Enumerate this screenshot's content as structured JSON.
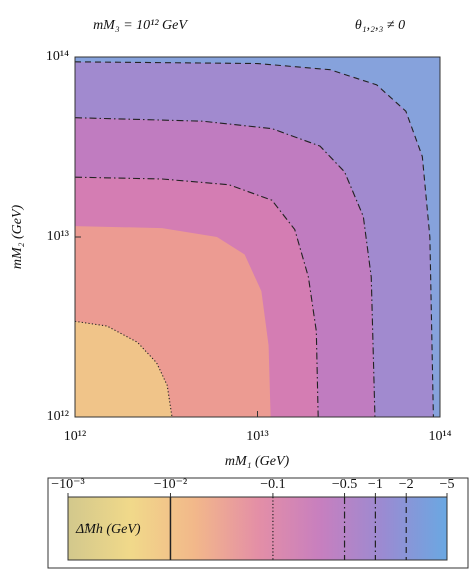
{
  "chart_data": {
    "type": "contour",
    "title": "mM₃ = 10¹² GeV",
    "annotation": "θ₁,₂,₃ ≠ 0",
    "x_label": "mM₁ (GeV)",
    "y_label": "mM₂ (GeV)",
    "log_x": true,
    "log_y": true,
    "xlim": [
      1000000000000.0,
      100000000000000.0
    ],
    "ylim": [
      1000000000000.0,
      100000000000000.0
    ],
    "xticks": [
      {
        "value": 1000000000000.0,
        "label": "10¹²"
      },
      {
        "value": 10000000000000.0,
        "label": "10¹³"
      },
      {
        "value": 100000000000000.0,
        "label": "10¹⁴"
      }
    ],
    "yticks": [
      {
        "value": 1000000000000.0,
        "label": "10¹²"
      },
      {
        "value": 10000000000000.0,
        "label": "10¹³"
      },
      {
        "value": 100000000000000.0,
        "label": "10¹⁴"
      }
    ],
    "background_color": "#86a2dc",
    "contours": [
      {
        "style": "dotted",
        "fill": "#f0c489",
        "x": [
          1000000000000.0,
          1500000000000.0,
          2200000000000.0,
          2800000000000.0,
          3200000000000.0,
          3400000000000.0
        ],
        "y": [
          3400000000000.0,
          3200000000000.0,
          2600000000000.0,
          2000000000000.0,
          1500000000000.0,
          1000000000000.0
        ]
      },
      {
        "style": "none",
        "fill": "#ec9b92",
        "x": [
          1000000000000.0,
          3000000000000.0,
          6000000000000.0,
          8500000000000.0,
          10500000000000.0,
          11500000000000.0,
          11800000000000.0
        ],
        "y": [
          11500000000000.0,
          11200000000000.0,
          10000000000000.0,
          8000000000000.0,
          5000000000000.0,
          2500000000000.0,
          1000000000000.0
        ]
      },
      {
        "style": "dashdot",
        "fill": "#d47db3",
        "x": [
          1000000000000.0,
          3000000000000.0,
          7000000000000.0,
          12000000000000.0,
          16000000000000.0,
          19000000000000.0,
          21000000000000.0,
          21500000000000.0
        ],
        "y": [
          21500000000000.0,
          21000000000000.0,
          19500000000000.0,
          16000000000000.0,
          11000000000000.0,
          6000000000000.0,
          3000000000000.0,
          1000000000000.0
        ]
      },
      {
        "style": "dashdot",
        "fill": "#c07cc0",
        "x": [
          1000000000000.0,
          5000000000000.0,
          12000000000000.0,
          22000000000000.0,
          30000000000000.0,
          38000000000000.0,
          42000000000000.0,
          44000000000000.0
        ],
        "y": [
          46000000000000.0,
          44000000000000.0,
          40000000000000.0,
          32000000000000.0,
          23000000000000.0,
          13000000000000.0,
          6000000000000.0,
          1000000000000.0
        ]
      },
      {
        "style": "dashed",
        "fill": "#a18acf",
        "x": [
          1000000000000.0,
          10000000000000.0,
          25000000000000.0,
          45000000000000.0,
          65000000000000.0,
          80000000000000.0,
          88000000000000.0,
          92000000000000.0
        ],
        "y": [
          94000000000000.0,
          92000000000000.0,
          85000000000000.0,
          70000000000000.0,
          50000000000000.0,
          28000000000000.0,
          10000000000000.0,
          1000000000000.0
        ]
      }
    ],
    "colorbar": {
      "label": "Δ̂Mh (GeV)",
      "log": true,
      "lim": [
        -0.001,
        -5
      ],
      "colors": [
        "#d2c88c",
        "#f1d98a",
        "#f2b88a",
        "#e48fa6",
        "#c77fbf",
        "#9a8bd2",
        "#6aa8e2"
      ],
      "ticks": [
        {
          "value": -0.001,
          "label": "−10⁻³"
        },
        {
          "value": -0.01,
          "label": "−10⁻²"
        },
        {
          "value": -0.1,
          "label": "−0.1"
        },
        {
          "value": -0.5,
          "label": "−0.5"
        },
        {
          "value": -1,
          "label": "−1"
        },
        {
          "value": -2,
          "label": "−2"
        },
        {
          "value": -5,
          "label": "−5"
        }
      ],
      "lines": [
        {
          "level": -0.01,
          "style": "solid"
        },
        {
          "level": -0.1,
          "style": "dotted"
        },
        {
          "level": -0.5,
          "style": "dashdot"
        },
        {
          "level": -1,
          "style": "dashdot"
        },
        {
          "level": -2,
          "style": "dashed"
        }
      ]
    }
  }
}
